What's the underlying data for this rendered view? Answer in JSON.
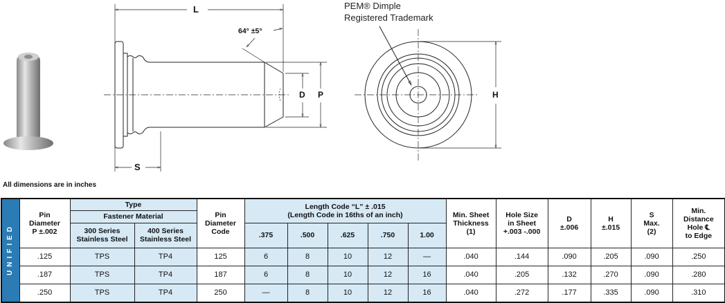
{
  "drawing": {
    "labels": {
      "L": "L",
      "S": "S",
      "D": "D",
      "P": "P",
      "H": "H",
      "angle": "64° ±5°"
    },
    "callout_line1": "PEM® Dimple",
    "callout_line2": "Registered Trademark"
  },
  "note": "All dimensions are in inches",
  "table": {
    "band": "UNIFIED",
    "headers": {
      "pin_diameter": [
        "Pin",
        "Diameter",
        "P ±.002"
      ],
      "type": "Type",
      "fastener_material": "Fastener Material",
      "series300": [
        "300 Series",
        "Stainless Steel"
      ],
      "series400": [
        "400 Series",
        "Stainless Steel"
      ],
      "pin_diameter_code": [
        "Pin",
        "Diameter",
        "Code"
      ],
      "length_code": [
        "Length Code “L” ± .015",
        "(Length Code in 16ths of an inch)"
      ],
      "lengths": [
        ".375",
        ".500",
        ".625",
        ".750",
        "1.00"
      ],
      "min_sheet": [
        "Min. Sheet",
        "Thickness",
        "(1)"
      ],
      "hole_size": [
        "Hole Size",
        "in Sheet",
        "+.003  -.000"
      ],
      "d": [
        "D",
        "±.006"
      ],
      "h": [
        "H",
        "±.015"
      ],
      "s": [
        "S",
        "Max.",
        "(2)"
      ],
      "min_dist": [
        "Min.",
        "Distance",
        "Hole ℄",
        "to Edge"
      ]
    },
    "rows": [
      {
        "p": ".125",
        "s300": "TPS",
        "s400": "TP4",
        "code": "125",
        "lengths": [
          "6",
          "8",
          "10",
          "12",
          "—"
        ],
        "min_sheet": ".040",
        "hole": ".144",
        "d": ".090",
        "h": ".205",
        "s": ".090",
        "dist": ".250"
      },
      {
        "p": ".187",
        "s300": "TPS",
        "s400": "TP4",
        "code": "187",
        "lengths": [
          "6",
          "8",
          "10",
          "12",
          "16"
        ],
        "min_sheet": ".040",
        "hole": ".205",
        "d": ".132",
        "h": ".270",
        "s": ".090",
        "dist": ".280"
      },
      {
        "p": ".250",
        "s300": "TPS",
        "s400": "TP4",
        "code": "250",
        "lengths": [
          "—",
          "8",
          "10",
          "12",
          "16"
        ],
        "min_sheet": ".040",
        "hole": ".272",
        "d": ".177",
        "h": ".335",
        "s": ".090",
        "dist": ".310"
      }
    ]
  },
  "colors": {
    "band": "#2b7bb5",
    "shade": "#d6e9f5"
  }
}
